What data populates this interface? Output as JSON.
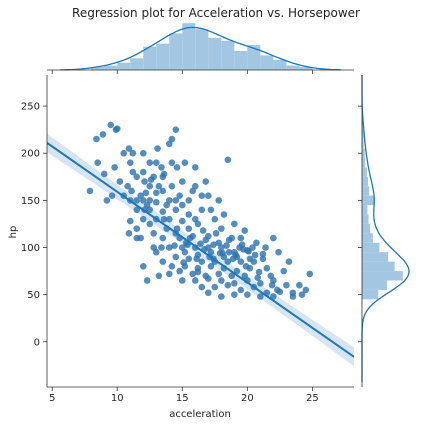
{
  "chart_data": {
    "type": "scatter",
    "subtype": "jointplot-regression",
    "title": "Regression plot for Acceleration vs. Horsepower",
    "xlabel": "acceleration",
    "ylabel": "hp",
    "xlim": [
      4.6,
      28.2
    ],
    "ylim": [
      -48,
      283
    ],
    "x_ticks": [
      5,
      10,
      15,
      20,
      25
    ],
    "y_ticks": [
      0,
      50,
      100,
      150,
      200,
      250
    ],
    "colors": {
      "points": "#2e74b0",
      "line": "#1f77b4",
      "band": "#cfe0ef",
      "hist": "#9ec4e2",
      "kde": "#1f77b4"
    },
    "regression": {
      "x": [
        4.6,
        28.2
      ],
      "y": [
        211,
        -16
      ],
      "ci_halfwidth_ends": 10
    },
    "points": [
      [
        7.9,
        160
      ],
      [
        8.5,
        190
      ],
      [
        8.4,
        215
      ],
      [
        8.9,
        220
      ],
      [
        9.5,
        230
      ],
      [
        9.9,
        225
      ],
      [
        10.0,
        226
      ],
      [
        10.5,
        200
      ],
      [
        11.0,
        190
      ],
      [
        11.2,
        200
      ],
      [
        12.1,
        170
      ],
      [
        12.0,
        200
      ],
      [
        10.8,
        165
      ],
      [
        9.6,
        155
      ],
      [
        9.2,
        150
      ],
      [
        11.2,
        180
      ],
      [
        11.5,
        175
      ],
      [
        12.0,
        180
      ],
      [
        12.5,
        165
      ],
      [
        12.8,
        175
      ],
      [
        13.0,
        190
      ],
      [
        13.5,
        175
      ],
      [
        14.0,
        210
      ],
      [
        14.2,
        215
      ],
      [
        14.5,
        225
      ],
      [
        13.0,
        158
      ],
      [
        13.5,
        160
      ],
      [
        14.0,
        150
      ],
      [
        14.2,
        165
      ],
      [
        14.5,
        150
      ],
      [
        15.0,
        145
      ],
      [
        15.5,
        150
      ],
      [
        12.5,
        150
      ],
      [
        13.0,
        148
      ],
      [
        11.5,
        140
      ],
      [
        11.0,
        150
      ],
      [
        11.5,
        150
      ],
      [
        12.0,
        150
      ],
      [
        10.5,
        155
      ],
      [
        11.8,
        155
      ],
      [
        12.2,
        158
      ],
      [
        13.2,
        165
      ],
      [
        15.0,
        170
      ],
      [
        16.0,
        165
      ],
      [
        16.5,
        155
      ],
      [
        17.0,
        155
      ],
      [
        18.5,
        193
      ],
      [
        17.2,
        140
      ],
      [
        12.0,
        130
      ],
      [
        13.0,
        130
      ],
      [
        14.0,
        130
      ],
      [
        15.0,
        128
      ],
      [
        16.0,
        130
      ],
      [
        12.5,
        140
      ],
      [
        13.5,
        138
      ],
      [
        14.5,
        140
      ],
      [
        15.5,
        135
      ],
      [
        16.5,
        140
      ],
      [
        17.5,
        130
      ],
      [
        11.5,
        120
      ],
      [
        12.5,
        125
      ],
      [
        13.5,
        110
      ],
      [
        14.5,
        115
      ],
      [
        15.5,
        120
      ],
      [
        16.2,
        125
      ],
      [
        17.0,
        112
      ],
      [
        18.0,
        120
      ],
      [
        12.8,
        115
      ],
      [
        13.8,
        120
      ],
      [
        14.8,
        110
      ],
      [
        15.8,
        112
      ],
      [
        16.8,
        108
      ],
      [
        17.8,
        105
      ],
      [
        18.8,
        110
      ],
      [
        19.5,
        110
      ],
      [
        14.0,
        100
      ],
      [
        15.0,
        100
      ],
      [
        16.0,
        100
      ],
      [
        17.0,
        100
      ],
      [
        18.0,
        100
      ],
      [
        19.0,
        95
      ],
      [
        20.0,
        97
      ],
      [
        15.2,
        95
      ],
      [
        16.2,
        92
      ],
      [
        17.2,
        95
      ],
      [
        18.2,
        90
      ],
      [
        19.2,
        90
      ],
      [
        20.2,
        88
      ],
      [
        14.5,
        90
      ],
      [
        15.5,
        88
      ],
      [
        16.5,
        85
      ],
      [
        17.5,
        85
      ],
      [
        18.5,
        85
      ],
      [
        19.5,
        85
      ],
      [
        20.5,
        85
      ],
      [
        13.5,
        85
      ],
      [
        14.2,
        80
      ],
      [
        15.2,
        80
      ],
      [
        16.2,
        78
      ],
      [
        17.2,
        80
      ],
      [
        18.2,
        78
      ],
      [
        19.2,
        75
      ],
      [
        20.2,
        78
      ],
      [
        21.5,
        78
      ],
      [
        14.8,
        75
      ],
      [
        15.8,
        72
      ],
      [
        16.8,
        70
      ],
      [
        17.8,
        72
      ],
      [
        18.8,
        70
      ],
      [
        19.8,
        70
      ],
      [
        20.8,
        68
      ],
      [
        21.8,
        70
      ],
      [
        15.0,
        65
      ],
      [
        16.0,
        65
      ],
      [
        17.0,
        67
      ],
      [
        18.0,
        65
      ],
      [
        19.0,
        62
      ],
      [
        20.0,
        65
      ],
      [
        21.0,
        62
      ],
      [
        22.0,
        65
      ],
      [
        16.5,
        58
      ],
      [
        17.5,
        58
      ],
      [
        18.5,
        60
      ],
      [
        19.5,
        55
      ],
      [
        20.5,
        58
      ],
      [
        21.5,
        52
      ],
      [
        22.5,
        53
      ],
      [
        23.0,
        60
      ],
      [
        17.0,
        52
      ],
      [
        18.0,
        48
      ],
      [
        19.0,
        50
      ],
      [
        20.0,
        50
      ],
      [
        21.0,
        48
      ],
      [
        22.0,
        48
      ],
      [
        23.5,
        52
      ],
      [
        24.5,
        55
      ],
      [
        23.5,
        48
      ],
      [
        24.2,
        50
      ],
      [
        24.8,
        72
      ],
      [
        23.2,
        85
      ],
      [
        22.4,
        95
      ],
      [
        21.2,
        93
      ],
      [
        22.8,
        75
      ],
      [
        13.4,
        100
      ],
      [
        14.4,
        102
      ],
      [
        15.4,
        103
      ],
      [
        16.4,
        104
      ],
      [
        17.4,
        103
      ],
      [
        18.4,
        102
      ],
      [
        19.4,
        100
      ],
      [
        20.4,
        100
      ],
      [
        13.0,
        95
      ],
      [
        12.0,
        80
      ],
      [
        12.3,
        65
      ],
      [
        13.2,
        70
      ],
      [
        14.0,
        72
      ],
      [
        11.8,
        110
      ],
      [
        12.8,
        100
      ],
      [
        13.6,
        130
      ],
      [
        14.6,
        120
      ],
      [
        15.6,
        110
      ],
      [
        16.6,
        118
      ],
      [
        17.6,
        115
      ],
      [
        18.6,
        108
      ],
      [
        19.6,
        103
      ],
      [
        20.6,
        92
      ],
      [
        21.4,
        100
      ],
      [
        22.0,
        110
      ],
      [
        11.5,
        110
      ],
      [
        10.9,
        115
      ],
      [
        9.0,
        178
      ],
      [
        11.0,
        128
      ],
      [
        12.3,
        145
      ],
      [
        13.8,
        145
      ],
      [
        14.8,
        155
      ],
      [
        15.8,
        160
      ],
      [
        16.8,
        170
      ],
      [
        14.6,
        185
      ],
      [
        15.2,
        190
      ],
      [
        16.0,
        185
      ],
      [
        13.4,
        185
      ],
      [
        12.5,
        190
      ],
      [
        17.8,
        150
      ],
      [
        18.2,
        135
      ],
      [
        19.0,
        125
      ],
      [
        19.8,
        118
      ],
      [
        15.3,
        105
      ],
      [
        16.7,
        98
      ],
      [
        17.9,
        94
      ],
      [
        18.9,
        88
      ],
      [
        19.9,
        80
      ],
      [
        20.9,
        74
      ],
      [
        21.9,
        60
      ],
      [
        22.3,
        55
      ],
      [
        24.0,
        60
      ],
      [
        21.2,
        88
      ],
      [
        12.1,
        140
      ],
      [
        11.1,
        160
      ],
      [
        12.6,
        172
      ],
      [
        13.6,
        178
      ],
      [
        14.2,
        190
      ],
      [
        10.2,
        170
      ],
      [
        9.8,
        185
      ],
      [
        10.9,
        205
      ],
      [
        13.1,
        205
      ],
      [
        16.2,
        74
      ],
      [
        17.4,
        88
      ],
      [
        18.6,
        95
      ],
      [
        19.7,
        98
      ],
      [
        20.7,
        105
      ],
      [
        15.1,
        84
      ],
      [
        16.1,
        88
      ],
      [
        17.1,
        90
      ],
      [
        18.1,
        94
      ],
      [
        19.1,
        92
      ],
      [
        20.1,
        96
      ]
    ],
    "top_hist": {
      "bin_edges": [
        8,
        9,
        10,
        11,
        12,
        13,
        14,
        15,
        16,
        17,
        18,
        19,
        20,
        21,
        22,
        23,
        24,
        25
      ],
      "counts": [
        2,
        3,
        5,
        8,
        16,
        18,
        25,
        32,
        28,
        22,
        20,
        13,
        17,
        10,
        7,
        3,
        2
      ]
    },
    "right_hist": {
      "bin_edges": [
        45,
        55,
        65,
        75,
        85,
        95,
        105,
        115,
        125,
        135,
        145,
        155,
        165,
        175,
        185,
        195,
        205,
        215,
        225,
        235
      ],
      "counts": [
        30,
        46,
        75,
        60,
        48,
        32,
        20,
        15,
        12,
        10,
        22,
        13,
        11,
        9,
        6,
        5,
        3,
        3,
        2
      ]
    }
  }
}
